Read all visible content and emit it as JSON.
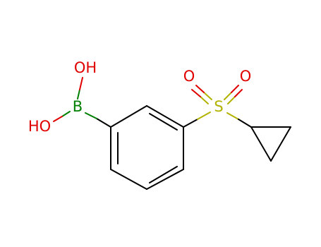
{
  "atoms": [
    {
      "label": "OH"
    },
    {
      "label": "HO"
    },
    {
      "label": "B"
    },
    {
      "label": "S"
    },
    {
      "label": "O"
    },
    {
      "label": "O"
    }
  ]
}
